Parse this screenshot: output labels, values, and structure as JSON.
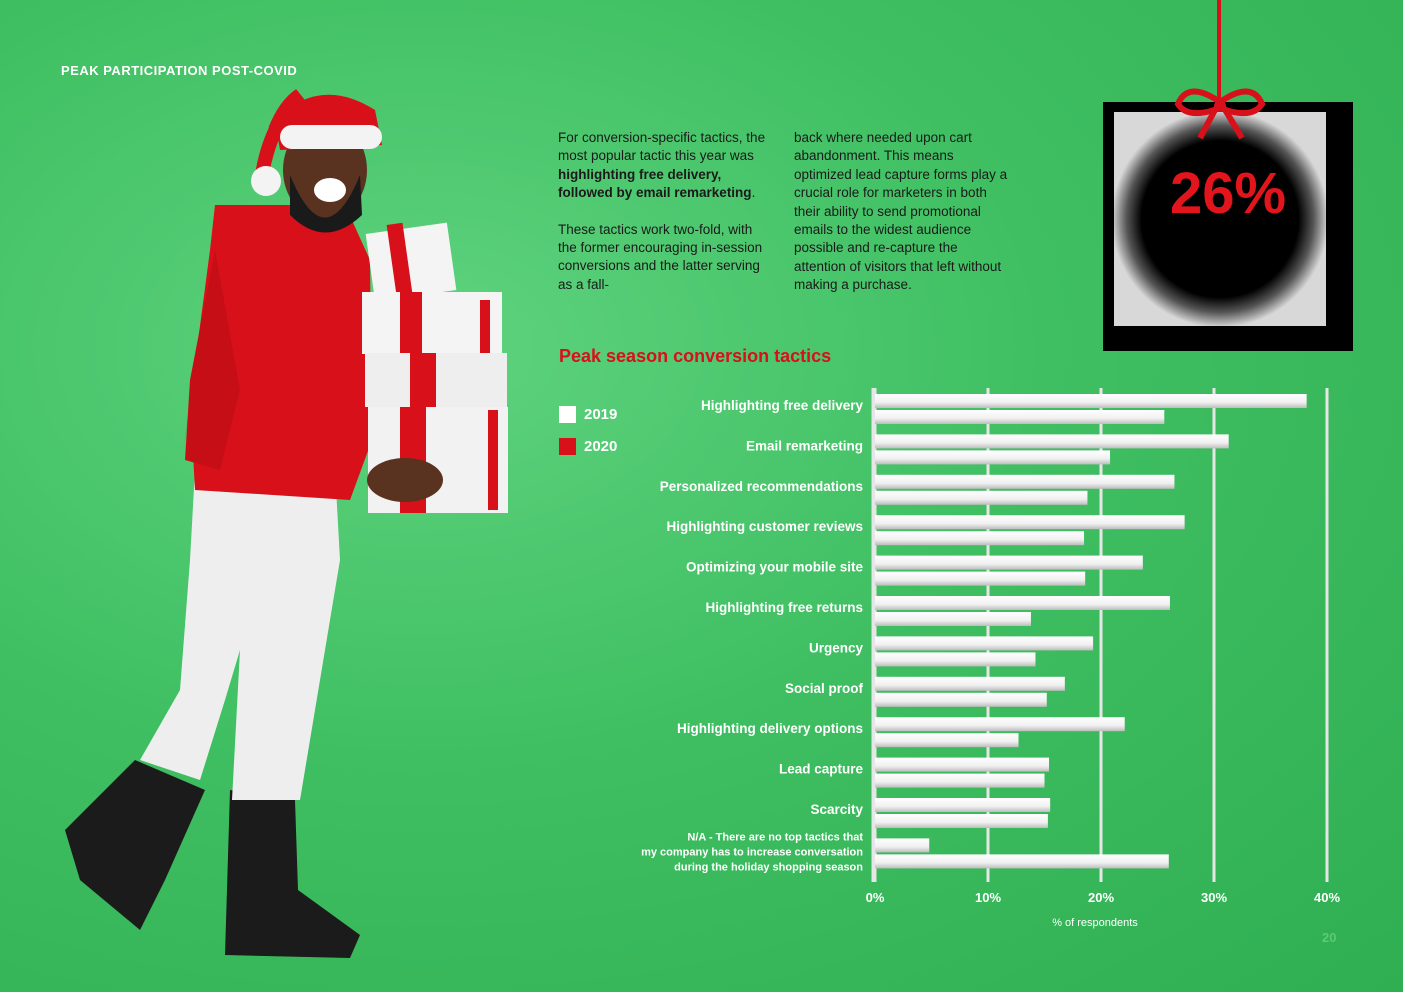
{
  "page": {
    "section_label": "PEAK PARTICIPATION POST-COVID",
    "page_number": "20"
  },
  "body_text": {
    "col1_p1_a": "For conversion-specific tactics, the most popular tactic this year was ",
    "col1_p1_bold": "highlighting free delivery, followed by email remarketing",
    "col1_p1_end": ".",
    "col1_p2": "These tactics work two-fold, with the former encouraging in-session conversions and the latter serving as a fall-",
    "col2": "back where needed upon cart abandonment. This means optimized lead capture forms play a crucial role for marketers in both their ability to send promotional emails to the widest audience possible and re-capture the attention of visitors that left without making a purchase."
  },
  "callout": {
    "value": "26%"
  },
  "colors": {
    "bg": "#3fbf62",
    "accent": "#d8101a",
    "bar": "#ffffff"
  },
  "chart_data": {
    "type": "bar",
    "orientation": "horizontal",
    "title": "Peak season conversion tactics",
    "xlabel": "% of respondents",
    "xlim": [
      0,
      40
    ],
    "ticks": [
      "0%",
      "10%",
      "20%",
      "30%",
      "40%"
    ],
    "grid": true,
    "legend_position": "left",
    "categories": [
      "Highlighting free delivery",
      "Email remarketing",
      "Personalized recommendations",
      "Highlighting customer reviews",
      "Optimizing your mobile site",
      "Highlighting free returns",
      "Urgency",
      "Social proof",
      "Highlighting delivery options",
      "Lead capture",
      "Scarcity",
      "N/A - There are no top tactics that my company has to increase conversation during the holiday shopping season"
    ],
    "series": [
      {
        "name": "2019",
        "color": "#ffffff",
        "values": [
          38.2,
          31.3,
          26.5,
          27.4,
          23.7,
          26.1,
          19.3,
          16.8,
          22.1,
          15.4,
          15.5,
          4.8
        ]
      },
      {
        "name": "2020",
        "color": "#d8101a",
        "values": [
          25.6,
          20.8,
          18.8,
          18.5,
          18.6,
          13.8,
          14.2,
          15.2,
          12.7,
          15.0,
          15.3,
          26.0
        ]
      }
    ]
  }
}
